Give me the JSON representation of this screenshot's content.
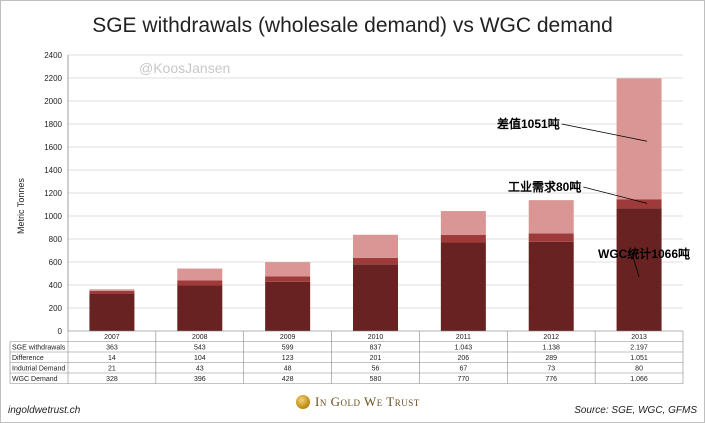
{
  "chart_data": {
    "type": "bar",
    "stacked": true,
    "title": "SGE withdrawals (wholesale demand) vs WGC demand",
    "ylabel": "Metric Tonnes",
    "xlabel": "",
    "ylim": [
      0,
      2400
    ],
    "yticks": [
      0,
      200,
      400,
      600,
      800,
      1000,
      1200,
      1400,
      1600,
      1800,
      2000,
      2200,
      2400
    ],
    "grid": true,
    "categories": [
      "2007",
      "2008",
      "2009",
      "2010",
      "2011",
      "2012",
      "2013"
    ],
    "series": [
      {
        "name": "WGC Demand",
        "color": "#692222",
        "values": [
          328,
          396,
          428,
          580,
          770,
          776,
          1066
        ]
      },
      {
        "name": "Indutrial Demand",
        "color": "#9e3a3a",
        "values": [
          21,
          43,
          48,
          56,
          67,
          73,
          80
        ]
      },
      {
        "name": "Difference",
        "color": "#d99694",
        "values": [
          14,
          104,
          123,
          201,
          206,
          289,
          1051
        ]
      }
    ],
    "table": {
      "rows": [
        {
          "label": "SGE withdrawals",
          "values": [
            "363",
            "543",
            "599",
            "837",
            "1.043",
            "1.138",
            "2.197"
          ]
        },
        {
          "label": "Difference",
          "values": [
            "14",
            "104",
            "123",
            "201",
            "206",
            "289",
            "1.051"
          ]
        },
        {
          "label": "Indutrial Demand",
          "values": [
            "21",
            "43",
            "48",
            "56",
            "67",
            "73",
            "80"
          ]
        },
        {
          "label": "WGC Demand",
          "values": [
            "328",
            "396",
            "428",
            "580",
            "770",
            "776",
            "1.066"
          ]
        }
      ]
    },
    "annotations": [
      {
        "text": "差值1051吨",
        "category": "2013",
        "target_value": 1650
      },
      {
        "text": "工业需求80吨",
        "category": "2013",
        "target_value": 1110
      },
      {
        "text": "WGC统计1066吨",
        "category": "2013",
        "target_value": 470
      }
    ]
  },
  "watermark": "@KoosJansen",
  "footer": {
    "left": "ingoldwetrust.ch",
    "right": "Source: SGE, WGC, GFMS",
    "brand": "In Gold We Trust"
  },
  "colors": {
    "grid": "#bfbfbf",
    "axis": "#888888",
    "text": "#222222"
  }
}
